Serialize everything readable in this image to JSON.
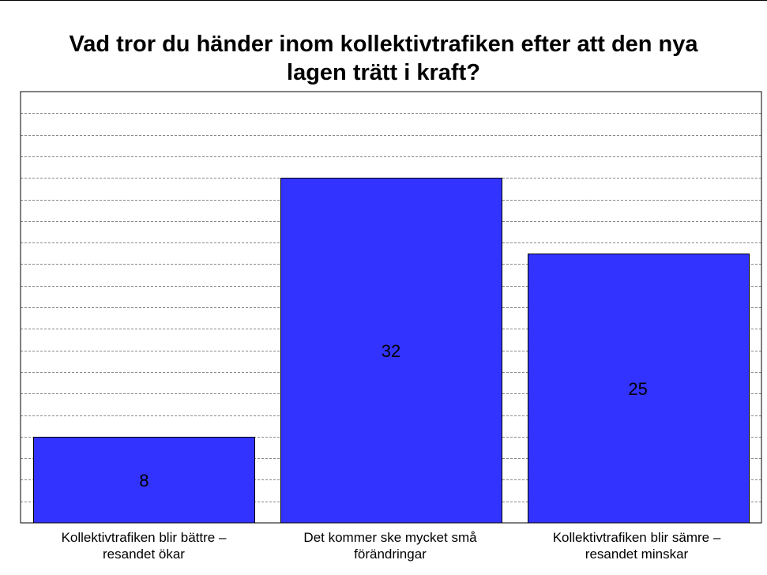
{
  "chart_data": {
    "type": "bar",
    "title_lines": [
      "Vad tror du händer inom kollektivtrafiken efter att den nya",
      "lagen trätt i kraft?"
    ],
    "categories": [
      [
        "Kollektivtrafiken  blir bättre –",
        "resandet ökar"
      ],
      [
        "Det kommer ske mycket små",
        "förändringar"
      ],
      [
        "Kollektivtrafiken  blir sämre –",
        "resandet minskar"
      ]
    ],
    "values": [
      8,
      32,
      25
    ],
    "data_labels": [
      "8",
      "32",
      "25"
    ],
    "ylim": [
      0,
      40
    ],
    "grid": true,
    "grid_step": 2,
    "bar_color": "#3333ff",
    "xlabel": "",
    "ylabel": ""
  }
}
